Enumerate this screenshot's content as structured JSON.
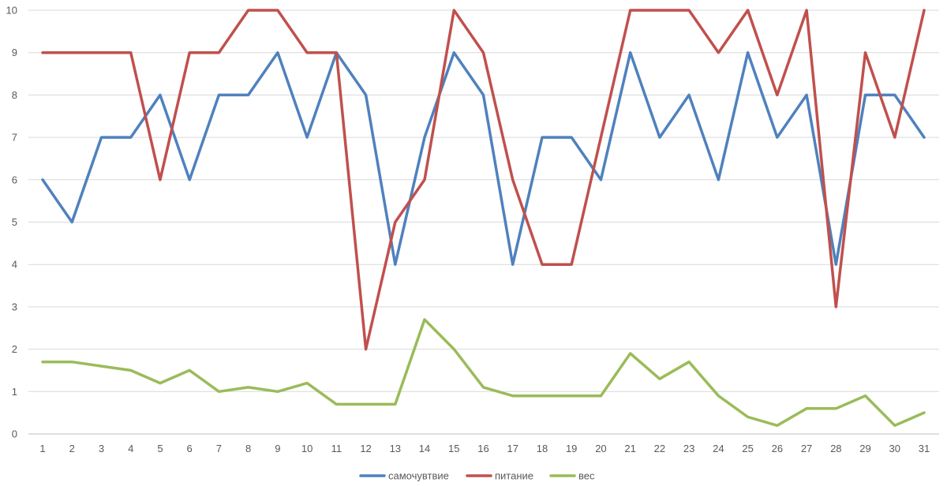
{
  "chart_data": {
    "type": "line",
    "x": [
      1,
      2,
      3,
      4,
      5,
      6,
      7,
      8,
      9,
      10,
      11,
      12,
      13,
      14,
      15,
      16,
      17,
      18,
      19,
      20,
      21,
      22,
      23,
      24,
      25,
      26,
      27,
      28,
      29,
      30,
      31
    ],
    "ylim": [
      0,
      10
    ],
    "yticks": [
      0,
      1,
      2,
      3,
      4,
      5,
      6,
      7,
      8,
      9,
      10
    ],
    "grid": true,
    "legend_position": "bottom",
    "series": [
      {
        "name": "самочувтвие",
        "color": "#4F81BD",
        "values": [
          6,
          5,
          7,
          7,
          8,
          6,
          8,
          8,
          9,
          7,
          9,
          8,
          4,
          7,
          9,
          8,
          4,
          7,
          7,
          6,
          9,
          7,
          8,
          6,
          9,
          7,
          8,
          4,
          8,
          8,
          7
        ]
      },
      {
        "name": "питание",
        "color": "#C0504D",
        "values": [
          9,
          9,
          9,
          9,
          6,
          9,
          9,
          10,
          10,
          9,
          9,
          2,
          5,
          6,
          10,
          9,
          6,
          4,
          4,
          7,
          10,
          10,
          10,
          9,
          10,
          8,
          10,
          3,
          9,
          7,
          10
        ]
      },
      {
        "name": "вес",
        "color": "#9BBB59",
        "values": [
          1.7,
          1.7,
          1.6,
          1.5,
          1.2,
          1.5,
          1.0,
          1.1,
          1.0,
          1.2,
          0.7,
          0.7,
          0.7,
          2.7,
          2.0,
          1.1,
          0.9,
          0.9,
          0.9,
          0.9,
          1.9,
          1.3,
          1.7,
          0.9,
          0.4,
          0.2,
          0.6,
          0.6,
          0.9,
          0.2,
          0.5
        ]
      }
    ]
  }
}
